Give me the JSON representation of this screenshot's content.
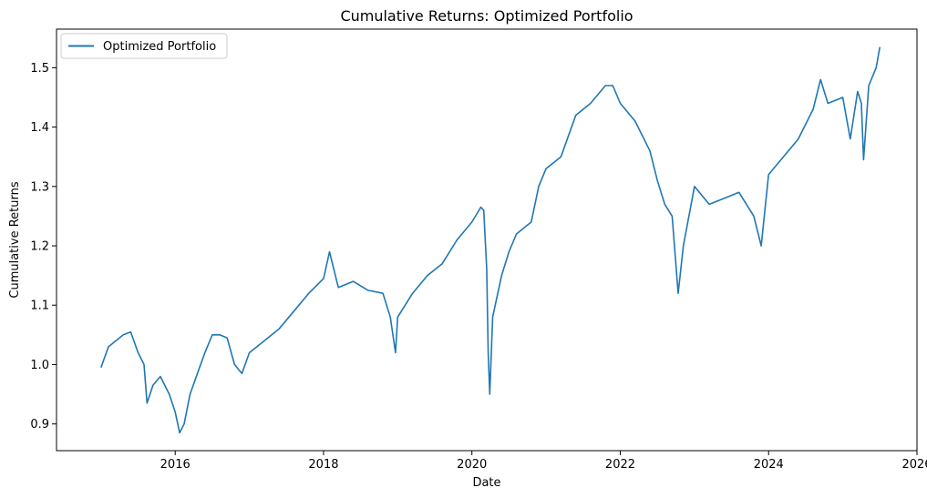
{
  "chart_data": {
    "type": "line",
    "title": "Cumulative Returns: Optimized Portfolio",
    "xlabel": "Date",
    "ylabel": "Cumulative Returns",
    "xlim": [
      2014.4,
      2026.0
    ],
    "ylim": [
      0.855,
      1.565
    ],
    "xticks": [
      2016,
      2018,
      2020,
      2022,
      2024,
      2026
    ],
    "xtick_labels": [
      "2016",
      "2018",
      "2020",
      "2022",
      "2024",
      "2026"
    ],
    "yticks": [
      0.9,
      1.0,
      1.1,
      1.2,
      1.3,
      1.4,
      1.5
    ],
    "ytick_labels": [
      "0.9",
      "1.0",
      "1.1",
      "1.2",
      "1.3",
      "1.4",
      "1.5"
    ],
    "grid": false,
    "legend": {
      "position": "top-left"
    },
    "series": [
      {
        "name": "Optimized Portfolio",
        "color": "#1f77b4",
        "x": [
          2015.0,
          2015.1,
          2015.2,
          2015.3,
          2015.4,
          2015.5,
          2015.58,
          2015.62,
          2015.7,
          2015.8,
          2015.92,
          2016.0,
          2016.06,
          2016.12,
          2016.2,
          2016.3,
          2016.4,
          2016.5,
          2016.6,
          2016.7,
          2016.8,
          2016.9,
          2017.0,
          2017.2,
          2017.4,
          2017.6,
          2017.8,
          2018.0,
          2018.08,
          2018.12,
          2018.2,
          2018.4,
          2018.6,
          2018.8,
          2018.9,
          2018.97,
          2019.0,
          2019.2,
          2019.4,
          2019.6,
          2019.8,
          2020.0,
          2020.12,
          2020.16,
          2020.2,
          2020.22,
          2020.24,
          2020.28,
          2020.4,
          2020.5,
          2020.6,
          2020.8,
          2020.9,
          2021.0,
          2021.2,
          2021.4,
          2021.6,
          2021.8,
          2021.9,
          2022.0,
          2022.2,
          2022.4,
          2022.5,
          2022.6,
          2022.7,
          2022.78,
          2022.85,
          2023.0,
          2023.2,
          2023.4,
          2023.6,
          2023.8,
          2023.9,
          2024.0,
          2024.2,
          2024.4,
          2024.6,
          2024.7,
          2024.8,
          2025.0,
          2025.1,
          2025.2,
          2025.25,
          2025.28,
          2025.35,
          2025.45,
          2025.5
        ],
        "y": [
          0.995,
          1.03,
          1.04,
          1.05,
          1.055,
          1.02,
          1.0,
          0.935,
          0.965,
          0.98,
          0.95,
          0.92,
          0.885,
          0.9,
          0.95,
          0.985,
          1.02,
          1.05,
          1.05,
          1.045,
          1.0,
          0.985,
          1.02,
          1.04,
          1.06,
          1.09,
          1.12,
          1.145,
          1.19,
          1.17,
          1.13,
          1.14,
          1.125,
          1.12,
          1.08,
          1.02,
          1.08,
          1.12,
          1.15,
          1.17,
          1.21,
          1.24,
          1.265,
          1.26,
          1.16,
          1.02,
          0.95,
          1.08,
          1.15,
          1.19,
          1.22,
          1.24,
          1.3,
          1.33,
          1.35,
          1.42,
          1.44,
          1.47,
          1.47,
          1.44,
          1.41,
          1.36,
          1.31,
          1.27,
          1.25,
          1.12,
          1.2,
          1.3,
          1.27,
          1.28,
          1.29,
          1.25,
          1.2,
          1.32,
          1.35,
          1.38,
          1.43,
          1.48,
          1.44,
          1.45,
          1.38,
          1.46,
          1.44,
          1.345,
          1.47,
          1.5,
          1.535
        ]
      }
    ]
  }
}
